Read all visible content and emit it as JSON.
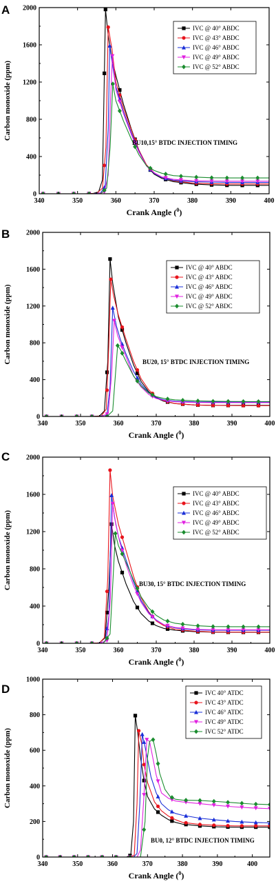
{
  "chart_data": [
    {
      "type": "line",
      "panel": "A",
      "xlabel": "Crank Angle (0)",
      "xlabel_main": "Crank Angle (",
      "xlabel_sup": "0",
      "xlabel_tail": ")",
      "ylabel": "Carbon monoxide (ppm)",
      "xlim": [
        340,
        400
      ],
      "ylim": [
        0,
        2000
      ],
      "xticks": [
        340,
        350,
        360,
        370,
        380,
        390,
        400
      ],
      "yticks": [
        0,
        400,
        800,
        1200,
        1600,
        2000
      ],
      "annotation": "BU10,15° BTDC  INJECTION TIMING",
      "legend_position": "top-right",
      "series": [
        {
          "name": "IVC @ 40° ABDC",
          "color": "#000000",
          "marker": "square",
          "x": [
            340,
            352,
            354,
            355.5,
            356.5,
            357.3,
            358,
            359,
            360,
            362,
            364,
            366,
            368,
            370,
            372,
            375,
            380,
            385,
            390,
            395,
            400
          ],
          "y": [
            0,
            0,
            3,
            20,
            150,
            1980,
            1700,
            1450,
            1270,
            960,
            700,
            470,
            300,
            210,
            165,
            130,
            105,
            95,
            90,
            90,
            90
          ]
        },
        {
          "name": "IVC @ 43° ABDC",
          "color": "#e8141c",
          "marker": "circle",
          "x": [
            340,
            353,
            355,
            356.5,
            357.4,
            358,
            359,
            360,
            362,
            364,
            366,
            368,
            370,
            372,
            375,
            380,
            385,
            390,
            395,
            400
          ],
          "y": [
            0,
            0,
            5,
            60,
            500,
            1790,
            1550,
            1200,
            920,
            690,
            470,
            310,
            225,
            175,
            140,
            115,
            108,
            105,
            105,
            105
          ]
        },
        {
          "name": "IVC @ 46° ABDC",
          "color": "#1a2fd8",
          "marker": "triangle-up",
          "x": [
            340,
            354,
            356,
            357.2,
            358,
            358.4,
            359,
            360,
            362,
            364,
            366,
            368,
            370,
            372,
            375,
            380,
            385,
            390,
            395,
            400
          ],
          "y": [
            0,
            0,
            10,
            80,
            700,
            1590,
            1420,
            1150,
            880,
            660,
            460,
            300,
            220,
            175,
            145,
            130,
            125,
            122,
            122,
            122
          ]
        },
        {
          "name": "IVC @ 49° ABDC",
          "color": "#e020e0",
          "marker": "triangle-down",
          "x": [
            340,
            355,
            357,
            358,
            358.6,
            359.1,
            360,
            362,
            364,
            366,
            368,
            370,
            372,
            375,
            380,
            385,
            390,
            395,
            400
          ],
          "y": [
            0,
            0,
            20,
            200,
            1000,
            1480,
            1120,
            860,
            640,
            450,
            300,
            225,
            180,
            155,
            140,
            137,
            135,
            135,
            135
          ]
        },
        {
          "name": "IVC @ 52° ABDC",
          "color": "#1a8c2e",
          "marker": "diamond",
          "x": [
            340,
            356,
            357.6,
            358.5,
            359.2,
            360,
            362,
            364,
            366,
            368,
            370,
            372,
            375,
            380,
            385,
            390,
            395,
            400
          ],
          "y": [
            0,
            0,
            60,
            500,
            1180,
            1000,
            780,
            590,
            420,
            300,
            250,
            220,
            195,
            180,
            172,
            170,
            170,
            170
          ]
        }
      ]
    },
    {
      "type": "line",
      "panel": "B",
      "xlabel": "Crank Angle (0)",
      "xlabel_main": "Crank Angle (",
      "xlabel_sup": "0",
      "xlabel_tail": ")",
      "ylabel": "Carbon monoxide (ppm)",
      "xlim": [
        340,
        400
      ],
      "ylim": [
        0,
        2000
      ],
      "xticks": [
        340,
        350,
        360,
        370,
        380,
        390,
        400
      ],
      "yticks": [
        0,
        400,
        800,
        1200,
        1600,
        2000
      ],
      "annotation": "BU20, 15° BTDC  INJECTION TIMING",
      "legend_position": "top-right",
      "series": [
        {
          "name": "IVC @ 40° ABDC",
          "color": "#000000",
          "marker": "square",
          "x": [
            340,
            353,
            355,
            356.3,
            357.2,
            357.8,
            358.5,
            360,
            362,
            364,
            366,
            368,
            370,
            372,
            375,
            380,
            385,
            390,
            395,
            400
          ],
          "y": [
            0,
            0,
            5,
            60,
            600,
            1710,
            1450,
            1080,
            800,
            560,
            380,
            270,
            200,
            165,
            140,
            125,
            120,
            120,
            120,
            120
          ]
        },
        {
          "name": "IVC @ 43° ABDC",
          "color": "#e8141c",
          "marker": "circle",
          "x": [
            340,
            353.5,
            355.5,
            356.8,
            357.5,
            358,
            358.7,
            360,
            362,
            364,
            366,
            368,
            370,
            372,
            375,
            380,
            385,
            390,
            395,
            400
          ],
          "y": [
            0,
            0,
            5,
            80,
            800,
            1490,
            1320,
            1100,
            840,
            600,
            410,
            290,
            210,
            170,
            140,
            125,
            120,
            118,
            117,
            117
          ]
        },
        {
          "name": "IVC @ 46° ABDC",
          "color": "#1a2fd8",
          "marker": "triangle-up",
          "x": [
            340,
            355,
            357,
            357.8,
            358.5,
            359.5,
            360.5,
            362,
            364,
            366,
            368,
            370,
            372,
            375,
            380,
            385,
            390,
            395,
            400
          ],
          "y": [
            0,
            0,
            20,
            330,
            1180,
            980,
            840,
            680,
            490,
            350,
            260,
            205,
            180,
            165,
            158,
            157,
            157,
            157,
            157
          ]
        },
        {
          "name": "IVC @ 49° ABDC",
          "color": "#e020e0",
          "marker": "triangle-down",
          "x": [
            340,
            355.5,
            357.3,
            358.2,
            358.9,
            359.8,
            361,
            362.5,
            364,
            366,
            368,
            370,
            372,
            375,
            380,
            385,
            390,
            395,
            400
          ],
          "y": [
            0,
            0,
            30,
            450,
            1040,
            880,
            750,
            600,
            440,
            320,
            240,
            195,
            175,
            160,
            152,
            150,
            150,
            150,
            150
          ]
        },
        {
          "name": "IVC @ 52° ABDC",
          "color": "#1a8c2e",
          "marker": "diamond",
          "x": [
            340,
            357,
            358.5,
            359.3,
            359.8,
            360.5,
            362,
            364,
            366,
            368,
            370,
            372,
            375,
            380,
            385,
            390,
            395,
            400
          ],
          "y": [
            0,
            0,
            60,
            500,
            770,
            730,
            600,
            440,
            330,
            255,
            215,
            195,
            180,
            170,
            165,
            163,
            162,
            162
          ]
        }
      ]
    },
    {
      "type": "line",
      "panel": "C",
      "xlabel": "Crank Angle (0)",
      "xlabel_main": "Crank Angle (",
      "xlabel_sup": "0",
      "xlabel_tail": ")",
      "ylabel": "Carbon monoxide (ppm)",
      "xlim": [
        340,
        400
      ],
      "ylim": [
        0,
        2000
      ],
      "xticks": [
        340,
        350,
        360,
        370,
        380,
        390,
        400
      ],
      "yticks": [
        0,
        400,
        800,
        1200,
        1600,
        2000
      ],
      "annotation": "BU30, 15° BTDC INJECTION TIMING",
      "legend_position": "top-right",
      "series": [
        {
          "name": "IVC @ 40° ABDC",
          "color": "#000000",
          "marker": "square",
          "x": [
            340,
            353,
            355,
            356.5,
            357.5,
            358.2,
            359,
            360,
            362,
            364,
            366,
            368,
            370,
            372,
            375,
            380,
            385,
            390,
            395,
            400
          ],
          "y": [
            0,
            0,
            5,
            60,
            600,
            1280,
            1050,
            880,
            640,
            450,
            320,
            240,
            190,
            160,
            140,
            125,
            120,
            118,
            118,
            118
          ]
        },
        {
          "name": "IVC @ 43° ABDC",
          "color": "#e8141c",
          "marker": "circle",
          "x": [
            340,
            353,
            355,
            356.3,
            357.2,
            357.8,
            358.5,
            360,
            362,
            364,
            366,
            368,
            370,
            372,
            375,
            380,
            385,
            390,
            395,
            400
          ],
          "y": [
            0,
            0,
            5,
            60,
            700,
            1860,
            1580,
            1280,
            1000,
            720,
            490,
            340,
            240,
            190,
            150,
            130,
            122,
            120,
            120,
            120
          ]
        },
        {
          "name": "IVC @ 46° ABDC",
          "color": "#1a2fd8",
          "marker": "triangle-up",
          "x": [
            340,
            354.5,
            356.5,
            357.5,
            358.2,
            359,
            360,
            362,
            364,
            366,
            368,
            370,
            372,
            375,
            380,
            385,
            390,
            395,
            400
          ],
          "y": [
            0,
            0,
            20,
            300,
            1590,
            1350,
            1150,
            900,
            660,
            460,
            330,
            250,
            200,
            165,
            145,
            140,
            140,
            140,
            140
          ]
        },
        {
          "name": "IVC @ 49° ABDC",
          "color": "#e020e0",
          "marker": "triangle-down",
          "x": [
            340,
            355,
            357,
            357.9,
            358.5,
            359.3,
            360.3,
            362,
            364,
            366,
            368,
            370,
            372,
            375,
            380,
            385,
            390,
            395,
            400
          ],
          "y": [
            0,
            0,
            30,
            480,
            1500,
            1280,
            1100,
            850,
            620,
            440,
            320,
            245,
            200,
            170,
            150,
            145,
            145,
            145,
            145
          ]
        },
        {
          "name": "IVC @ 52° ABDC",
          "color": "#1a8c2e",
          "marker": "diamond",
          "x": [
            340,
            356,
            357.8,
            358.6,
            359.2,
            360,
            362,
            364,
            366,
            368,
            370,
            372,
            375,
            380,
            385,
            390,
            395,
            400
          ],
          "y": [
            0,
            0,
            100,
            700,
            1180,
            1050,
            870,
            680,
            500,
            380,
            300,
            250,
            215,
            190,
            180,
            178,
            178,
            178
          ]
        }
      ]
    },
    {
      "type": "line",
      "panel": "D",
      "xlabel": "Crank Angle (0)",
      "xlabel_main": "Crank Angle (",
      "xlabel_sup": "0",
      "xlabel_tail": ")",
      "ylabel": "Carbon monoxide (ppm)",
      "xlim": [
        340,
        405
      ],
      "ylim": [
        0,
        1000
      ],
      "xticks": [
        340,
        350,
        360,
        370,
        380,
        390,
        400
      ],
      "yticks": [
        0,
        200,
        400,
        600,
        800,
        1000
      ],
      "annotation": "BU0, 12° BTDC INJECTION TIMING",
      "legend_position": "top-right",
      "series": [
        {
          "name": "IVC 40° ATDC",
          "color": "#000000",
          "marker": "square",
          "x": [
            340,
            364,
            365.2,
            366,
            366.5,
            367.2,
            368,
            369,
            370,
            372,
            374,
            376,
            378,
            380,
            385,
            390,
            395,
            400,
            405
          ],
          "y": [
            0,
            0,
            10,
            200,
            795,
            700,
            560,
            430,
            340,
            270,
            235,
            210,
            195,
            185,
            175,
            170,
            168,
            168,
            168
          ]
        },
        {
          "name": "IVC 43° ATDC",
          "color": "#e8141c",
          "marker": "circle",
          "x": [
            340,
            365,
            366.2,
            367,
            367.5,
            368.3,
            369,
            370,
            372,
            374,
            376,
            378,
            380,
            385,
            390,
            395,
            400,
            405
          ],
          "y": [
            0,
            0,
            10,
            300,
            710,
            640,
            520,
            420,
            310,
            260,
            230,
            210,
            195,
            183,
            178,
            175,
            175,
            175
          ]
        },
        {
          "name": "IVC 46° ATDC",
          "color": "#1a2fd8",
          "marker": "triangle-up",
          "x": [
            340,
            366,
            367,
            367.8,
            368.5,
            369.3,
            370.2,
            371,
            372.5,
            374,
            376,
            378,
            380,
            385,
            390,
            395,
            400,
            405
          ],
          "y": [
            0,
            0,
            20,
            300,
            690,
            620,
            530,
            450,
            360,
            300,
            265,
            245,
            235,
            218,
            208,
            200,
            195,
            192
          ]
        },
        {
          "name": "IVC 49° ATDC",
          "color": "#e020e0",
          "marker": "triangle-down",
          "x": [
            340,
            367,
            368,
            369,
            369.8,
            370.6,
            371.5,
            372.5,
            374,
            376,
            378,
            380,
            385,
            390,
            395,
            400,
            405
          ],
          "y": [
            0,
            0,
            40,
            350,
            660,
            650,
            560,
            460,
            360,
            330,
            315,
            310,
            300,
            290,
            282,
            276,
            272
          ]
        },
        {
          "name": "IVC 52° ATDC",
          "color": "#1a8c2e",
          "marker": "diamond",
          "x": [
            340,
            368,
            369.3,
            370,
            370.6,
            371.6,
            372.5,
            373.5,
            375,
            376.5,
            378,
            380,
            385,
            390,
            395,
            400,
            405
          ],
          "y": [
            0,
            0,
            200,
            560,
            650,
            660,
            580,
            470,
            380,
            340,
            325,
            320,
            318,
            312,
            305,
            298,
            295
          ]
        }
      ]
    }
  ]
}
